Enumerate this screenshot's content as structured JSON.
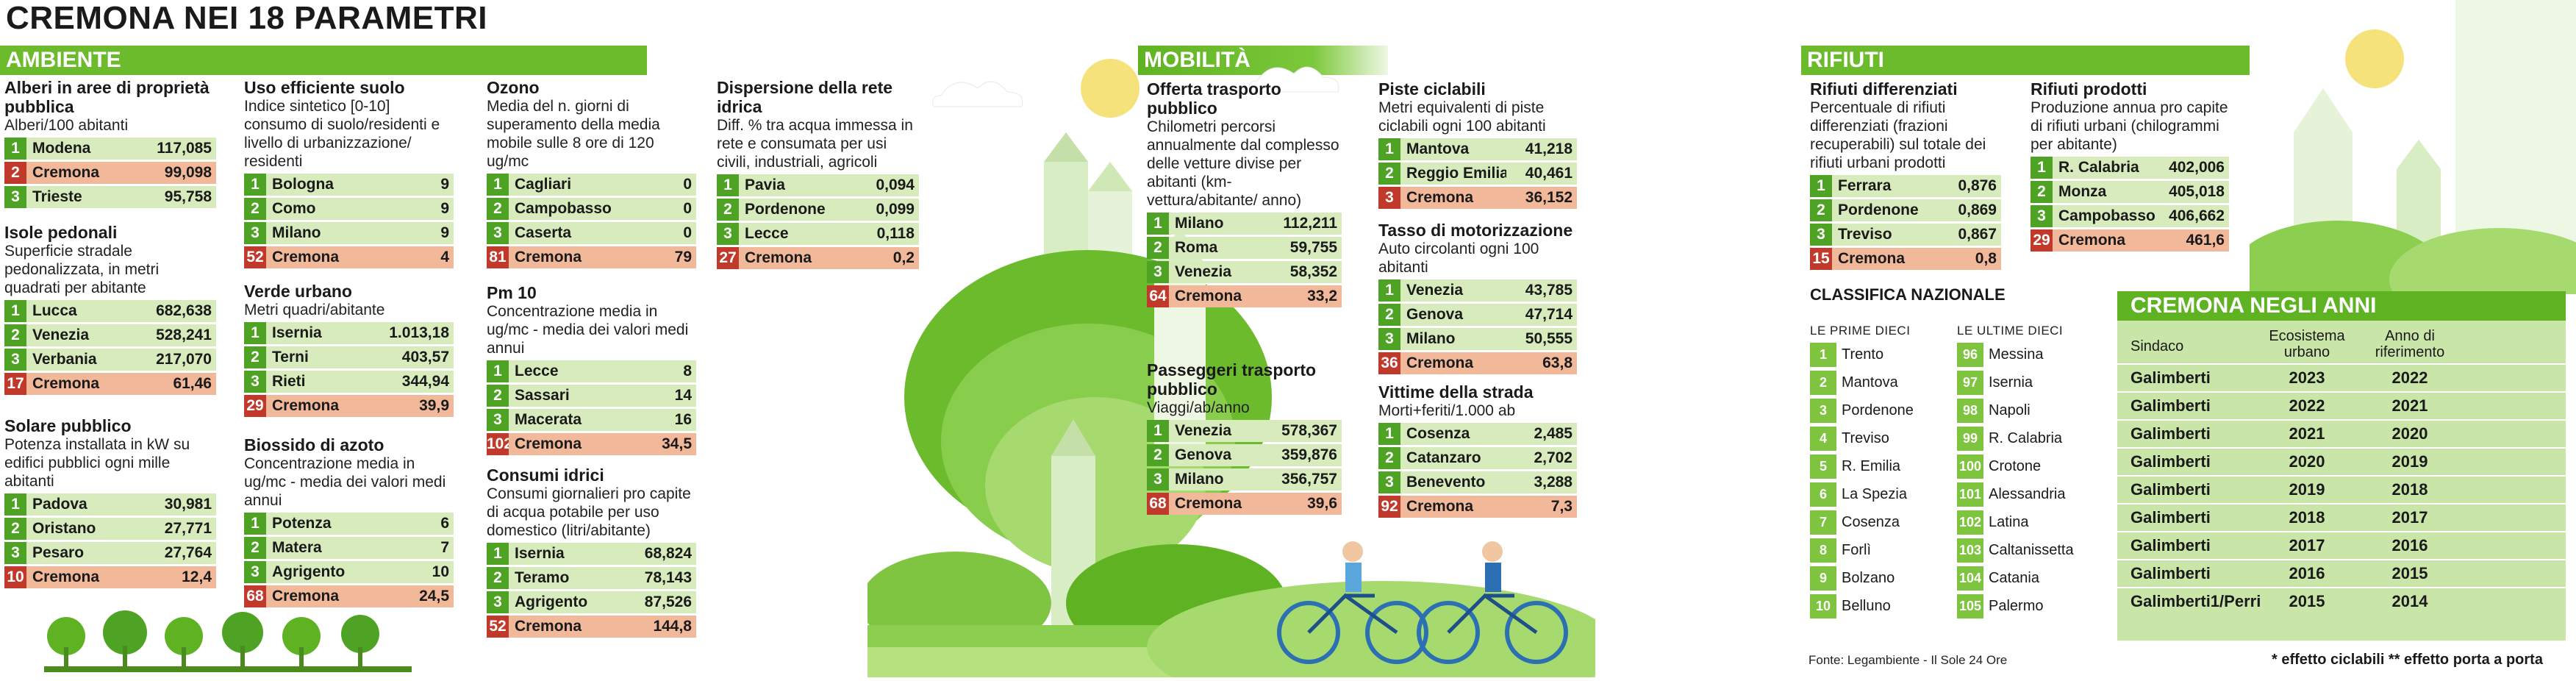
{
  "title": "CREMONA NEI 18 PARAMETRI",
  "sections": {
    "ambiente": "AMBIENTE",
    "mobilita": "MOBILITÀ",
    "rifiuti": "RIFIUTI"
  },
  "blocks": {
    "alberi": {
      "title": "Alberi in aree di proprietà pubblica",
      "subtitle": "Alberi/100 abitanti",
      "rows": [
        {
          "rank": "1",
          "name": "Modena",
          "value": "117,085"
        },
        {
          "rank": "2",
          "name": "Cremona",
          "value": "99,098"
        },
        {
          "rank": "3",
          "name": "Trieste",
          "value": "95,758"
        }
      ]
    },
    "isole": {
      "title": "Isole pedonali",
      "subtitle": "Superficie stradale pedonalizzata, in metri quadrati per abitante",
      "rows": [
        {
          "rank": "1",
          "name": "Lucca",
          "value": "682,638"
        },
        {
          "rank": "2",
          "name": "Venezia",
          "value": "528,241"
        },
        {
          "rank": "3",
          "name": "Verbania",
          "value": "217,070"
        },
        {
          "rank": "17",
          "name": "Cremona",
          "value": "61,46"
        }
      ]
    },
    "solare": {
      "title": "Solare pubblico",
      "subtitle": "Potenza installata in kW su edifici pubblici ogni mille abitanti",
      "rows": [
        {
          "rank": "1",
          "name": "Padova",
          "value": "30,981"
        },
        {
          "rank": "2",
          "name": "Oristano",
          "value": "27,771"
        },
        {
          "rank": "3",
          "name": "Pesaro",
          "value": "27,764"
        },
        {
          "rank": "10",
          "name": "Cremona",
          "value": "12,4"
        }
      ]
    },
    "suolo": {
      "title": "Uso efficiente suolo",
      "subtitle": "Indice sintetico [0-10] consumo di suolo/residenti e livello di urbanizzazione/ residenti",
      "rows": [
        {
          "rank": "1",
          "name": "Bologna",
          "value": "9"
        },
        {
          "rank": "2",
          "name": "Como",
          "value": "9"
        },
        {
          "rank": "3",
          "name": "Milano",
          "value": "9"
        },
        {
          "rank": "52",
          "name": "Cremona",
          "value": "4"
        }
      ]
    },
    "verde": {
      "title": "Verde urbano",
      "subtitle": "Metri quadri/abitante",
      "rows": [
        {
          "rank": "1",
          "name": "Isernia",
          "value": "1.013,18"
        },
        {
          "rank": "2",
          "name": "Terni",
          "value": "403,57"
        },
        {
          "rank": "3",
          "name": "Rieti",
          "value": "344,94"
        },
        {
          "rank": "29",
          "name": "Cremona",
          "value": "39,9"
        }
      ]
    },
    "biossido": {
      "title": "Biossido di azoto",
      "subtitle": "Concentrazione media in ug/mc - media dei valori medi annui",
      "rows": [
        {
          "rank": "1",
          "name": "Potenza",
          "value": "6"
        },
        {
          "rank": "2",
          "name": "Matera",
          "value": "7"
        },
        {
          "rank": "3",
          "name": "Agrigento",
          "value": "10"
        },
        {
          "rank": "68",
          "name": "Cremona",
          "value": "24,5"
        }
      ]
    },
    "ozono": {
      "title": "Ozono",
      "subtitle": "Media del n. giorni di superamento della media mobile sulle 8 ore di 120 ug/mc",
      "rows": [
        {
          "rank": "1",
          "name": "Cagliari",
          "value": "0"
        },
        {
          "rank": "2",
          "name": "Campobasso",
          "value": "0"
        },
        {
          "rank": "3",
          "name": "Caserta",
          "value": "0"
        },
        {
          "rank": "81",
          "name": "Cremona",
          "value": "79"
        }
      ]
    },
    "pm10": {
      "title": "Pm 10",
      "subtitle": "Concentrazione media in ug/mc - media dei valori medi annui",
      "rows": [
        {
          "rank": "1",
          "name": "Lecce",
          "value": "8"
        },
        {
          "rank": "2",
          "name": "Sassari",
          "value": "14"
        },
        {
          "rank": "3",
          "name": "Macerata",
          "value": "16"
        },
        {
          "rank": "102",
          "name": "Cremona",
          "value": "34,5"
        }
      ]
    },
    "consumi": {
      "title": "Consumi idrici",
      "subtitle": "Consumi giornalieri pro capite di acqua potabile per uso domestico (litri/abitante)",
      "rows": [
        {
          "rank": "1",
          "name": "Isernia",
          "value": "68,824"
        },
        {
          "rank": "2",
          "name": "Teramo",
          "value": "78,143"
        },
        {
          "rank": "3",
          "name": "Agrigento",
          "value": "87,526"
        },
        {
          "rank": "52",
          "name": "Cremona",
          "value": "144,8"
        }
      ]
    },
    "dispersione": {
      "title": "Dispersione della rete idrica",
      "subtitle": "Diff. % tra acqua immessa in rete e consumata per usi civili, industriali, agricoli",
      "rows": [
        {
          "rank": "1",
          "name": "Pavia",
          "value": "0,094"
        },
        {
          "rank": "2",
          "name": "Pordenone",
          "value": "0,099"
        },
        {
          "rank": "3",
          "name": "Lecce",
          "value": "0,118"
        },
        {
          "rank": "27",
          "name": "Cremona",
          "value": "0,2"
        }
      ]
    },
    "offerta": {
      "title": "Offerta trasporto pubblico",
      "subtitle": "Chilometri percorsi annualmente dal complesso delle vetture divise per abitanti (km-vettura/abitante/ anno)",
      "rows": [
        {
          "rank": "1",
          "name": "Milano",
          "value": "112,211"
        },
        {
          "rank": "2",
          "name": "Roma",
          "value": "59,755"
        },
        {
          "rank": "3",
          "name": "Venezia",
          "value": "58,352"
        },
        {
          "rank": "64",
          "name": "Cremona",
          "value": "33,2"
        }
      ]
    },
    "passeggeri": {
      "title": "Passeggeri trasporto pubblico",
      "subtitle": "Viaggi/ab/anno",
      "rows": [
        {
          "rank": "1",
          "name": "Venezia",
          "value": "578,367"
        },
        {
          "rank": "2",
          "name": "Genova",
          "value": "359,876"
        },
        {
          "rank": "3",
          "name": "Milano",
          "value": "356,757"
        },
        {
          "rank": "68",
          "name": "Cremona",
          "value": "39,6"
        }
      ]
    },
    "piste": {
      "title": "Piste ciclabili",
      "subtitle": "Metri equivalenti di piste ciclabili ogni 100 abitanti",
      "rows": [
        {
          "rank": "1",
          "name": "Mantova",
          "value": "41,218"
        },
        {
          "rank": "2",
          "name": "Reggio Emilia",
          "value": "40,461"
        },
        {
          "rank": "3",
          "name": "Cremona",
          "value": "36,152"
        }
      ]
    },
    "tasso": {
      "title": "Tasso di motorizzazione",
      "subtitle": "Auto circolanti ogni 100 abitanti",
      "rows": [
        {
          "rank": "1",
          "name": "Venezia",
          "value": "43,785"
        },
        {
          "rank": "2",
          "name": "Genova",
          "value": "47,714"
        },
        {
          "rank": "3",
          "name": "Milano",
          "value": "50,555"
        },
        {
          "rank": "36",
          "name": "Cremona",
          "value": "63,8"
        }
      ]
    },
    "vittime": {
      "title": "Vittime della strada",
      "subtitle": "Morti+feriti/1.000 ab",
      "rows": [
        {
          "rank": "1",
          "name": "Cosenza",
          "value": "2,485"
        },
        {
          "rank": "2",
          "name": "Catanzaro",
          "value": "2,702"
        },
        {
          "rank": "3",
          "name": "Benevento",
          "value": "3,288"
        },
        {
          "rank": "92",
          "name": "Cremona",
          "value": "7,3"
        }
      ]
    },
    "differenziati": {
      "title": "Rifiuti differenziati",
      "subtitle": "Percentuale di rifiuti differenziati (frazioni recuperabili) sul totale dei rifiuti urbani prodotti",
      "rows": [
        {
          "rank": "1",
          "name": "Ferrara",
          "value": "0,876"
        },
        {
          "rank": "2",
          "name": "Pordenone",
          "value": "0,869"
        },
        {
          "rank": "3",
          "name": "Treviso",
          "value": "0,867"
        },
        {
          "rank": "15",
          "name": "Cremona",
          "value": "0,8"
        }
      ]
    },
    "prodotti": {
      "title": "Rifiuti prodotti",
      "subtitle": "Produzione annua pro capite di rifiuti urbani (chilogrammi per abitante)",
      "rows": [
        {
          "rank": "1",
          "name": "R. Calabria",
          "value": "402,006"
        },
        {
          "rank": "2",
          "name": "Monza",
          "value": "405,018"
        },
        {
          "rank": "3",
          "name": "Campobasso",
          "value": "406,662"
        },
        {
          "rank": "29",
          "name": "Cremona",
          "value": "461,6"
        }
      ]
    }
  },
  "classifica": {
    "title": "CLASSIFICA NAZIONALE",
    "first_label": "LE PRIME DIECI",
    "last_label": "LE ULTIME DIECI",
    "first": [
      {
        "rank": "1",
        "name": "Trento"
      },
      {
        "rank": "2",
        "name": "Mantova"
      },
      {
        "rank": "3",
        "name": "Pordenone"
      },
      {
        "rank": "4",
        "name": "Treviso"
      },
      {
        "rank": "5",
        "name": "R. Emilia"
      },
      {
        "rank": "6",
        "name": "La Spezia"
      },
      {
        "rank": "7",
        "name": "Cosenza"
      },
      {
        "rank": "8",
        "name": "Forlì"
      },
      {
        "rank": "9",
        "name": "Bolzano"
      },
      {
        "rank": "10",
        "name": "Belluno"
      }
    ],
    "last": [
      {
        "rank": "96",
        "name": "Messina"
      },
      {
        "rank": "97",
        "name": "Isernia"
      },
      {
        "rank": "98",
        "name": "Napoli"
      },
      {
        "rank": "99",
        "name": "R. Calabria"
      },
      {
        "rank": "100",
        "name": "Crotone"
      },
      {
        "rank": "101",
        "name": "Alessandria"
      },
      {
        "rank": "102",
        "name": "Latina"
      },
      {
        "rank": "103",
        "name": "Caltanissetta"
      },
      {
        "rank": "104",
        "name": "Catania"
      },
      {
        "rank": "105",
        "name": "Palermo"
      }
    ]
  },
  "anni": {
    "title": "CREMONA NEGLI ANNI",
    "col_sindaco": "Sindaco",
    "col_ecosistema": "Ecosistema urbano",
    "col_anno": "Anno di riferimento",
    "rows": [
      {
        "sindaco": "Galimberti",
        "eco": "2023",
        "anno": "2022"
      },
      {
        "sindaco": "Galimberti",
        "eco": "2022",
        "anno": "2021"
      },
      {
        "sindaco": "Galimberti",
        "eco": "2021",
        "anno": "2020"
      },
      {
        "sindaco": "Galimberti",
        "eco": "2020",
        "anno": "2019"
      },
      {
        "sindaco": "Galimberti",
        "eco": "2019",
        "anno": "2018"
      },
      {
        "sindaco": "Galimberti",
        "eco": "2018",
        "anno": "2017"
      },
      {
        "sindaco": "Galimberti",
        "eco": "2017",
        "anno": "2016"
      },
      {
        "sindaco": "Galimberti",
        "eco": "2016",
        "anno": "2015"
      },
      {
        "sindaco": "Galimberti1/Perri",
        "eco": "2015",
        "anno": "2014"
      }
    ]
  },
  "footer": {
    "source": "Fonte: Legambiente - Il Sole 24 Ore",
    "note": "* effetto ciclabili ** effetto porta a porta"
  },
  "colors": {
    "green": "#6cbb2d",
    "green_light": "#d7ebbc",
    "red": "#c0392b",
    "salmon": "#f2b89a"
  }
}
